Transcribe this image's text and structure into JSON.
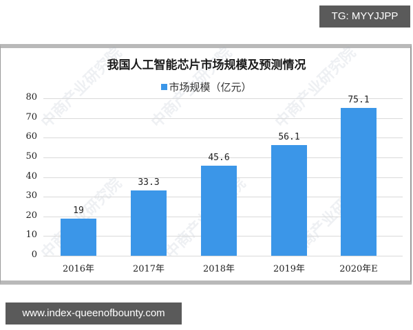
{
  "overlay": {
    "tg_label": "TG: MYYJJPP",
    "url_label": "www.index-queenofbounty.com"
  },
  "watermark": "中商产业研究院",
  "chart_data": {
    "type": "bar",
    "title": "我国人工智能芯片市场规模及预测情况",
    "legend": [
      "市场规模（亿元）"
    ],
    "legend_position": "top",
    "categories": [
      "2016年",
      "2017年",
      "2018年",
      "2019年",
      "2020年E"
    ],
    "series": [
      {
        "name": "市场规模（亿元）",
        "values": [
          19,
          33.3,
          45.6,
          56.1,
          75.1
        ],
        "color": "#3b96e8"
      }
    ],
    "data_labels": [
      "19",
      "33.3",
      "45.6",
      "56.1",
      "75.1"
    ],
    "xlabel": "",
    "ylabel": "",
    "ylim": [
      0,
      80
    ],
    "yticks": [
      "0",
      "10",
      "20",
      "30",
      "40",
      "50",
      "60",
      "70",
      "80"
    ],
    "grid": true
  }
}
